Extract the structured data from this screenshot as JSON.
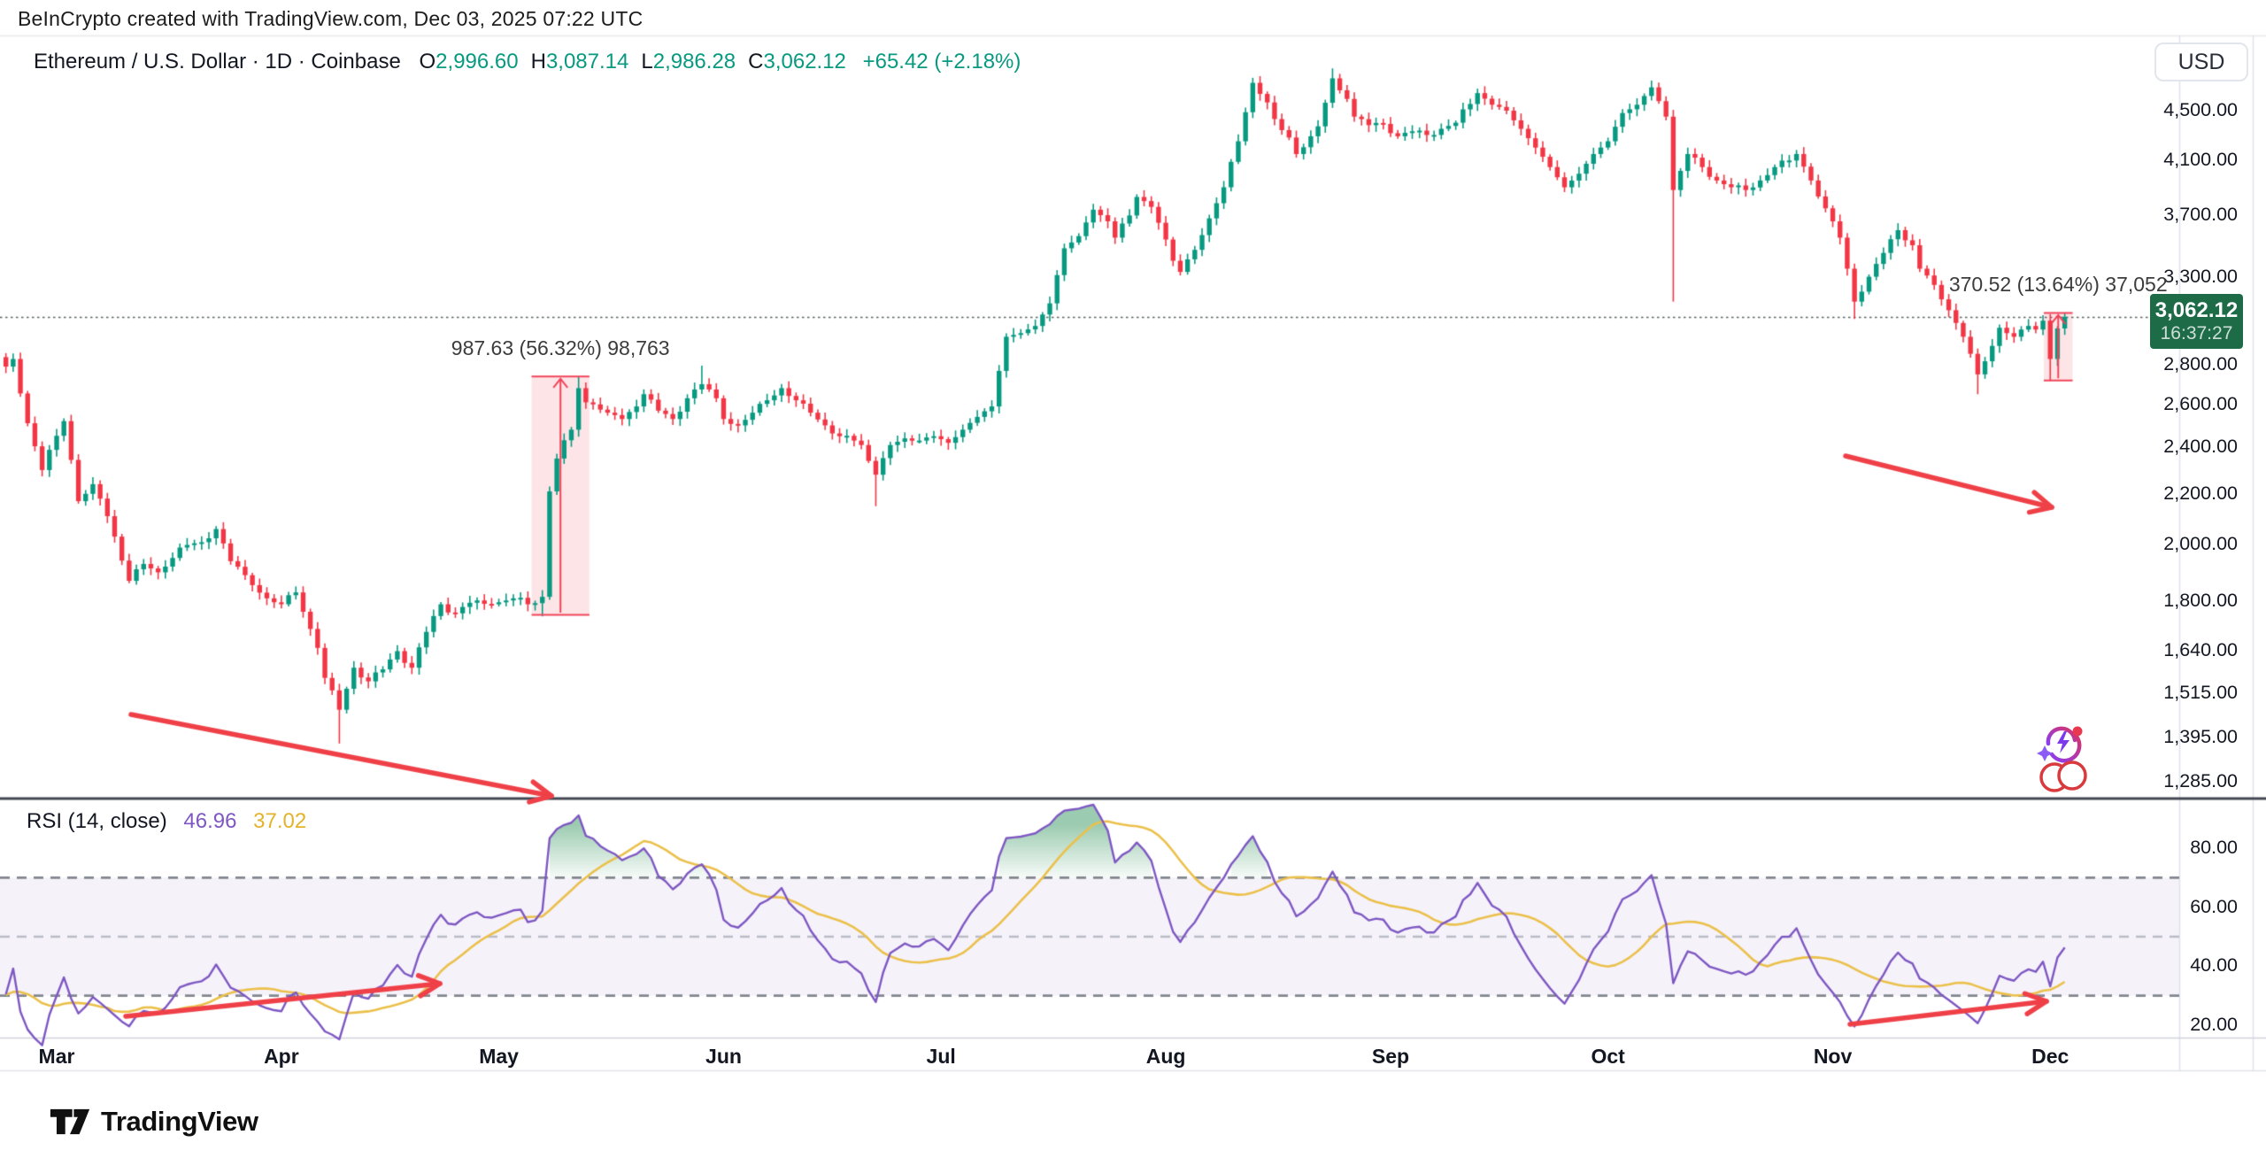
{
  "page": {
    "top_bar": "BeInCrypto created with TradingView.com, Dec 03, 2025 07:22 UTC"
  },
  "header": {
    "title_line": "Ethereum / U.S. Dollar · 1D · Coinbase",
    "ohlc": [
      {
        "label": "O",
        "value": "2,996.60"
      },
      {
        "label": "H",
        "value": "3,087.14"
      },
      {
        "label": "L",
        "value": "2,986.28"
      },
      {
        "label": "C",
        "value": "3,062.12"
      }
    ],
    "change": "+65.42 (+2.18%)"
  },
  "price_scale": {
    "currency_button": "USD",
    "labels": [
      "4,500.00",
      "4,100.00",
      "3,700.00",
      "3,300.00",
      "2,800.00",
      "2,600.00",
      "2,400.00",
      "2,200.00",
      "2,000.00",
      "1,800.00",
      "1,640.00",
      "1,515.00",
      "1,395.00",
      "1,285.00"
    ],
    "last_price_badge": {
      "price": "3,062.12",
      "countdown": "16:37:27"
    }
  },
  "time_scale": {
    "months": [
      "Mar",
      "Apr",
      "May",
      "Jun",
      "Jul",
      "Aug",
      "Sep",
      "Oct",
      "Nov",
      "Dec"
    ]
  },
  "annotations": {
    "may_measure_label": "987.63 (56.32%) 98,763",
    "dec_measure_label": "370.52 (13.64%) 37,052"
  },
  "rsi": {
    "legend_title": "RSI (14, close)",
    "rsi_value": "46.96",
    "ma_value": "37.02",
    "scale_labels": [
      "80.00",
      "60.00",
      "40.00",
      "20.00"
    ]
  },
  "footer": {
    "brand": "TradingView"
  },
  "colors": {
    "up": "#089981",
    "down": "#F23645",
    "rsi_line": "#7E57C2",
    "rsi_ma": "#EBC04A",
    "band_fill": "rgba(126,87,194,0.08)",
    "band_edge_dash": "#83868f",
    "band_mid_dash": "#b9bcc4",
    "overbought_top": "rgba(34,140,80,0.45)",
    "overbought_bottom": "rgba(34,140,80,0.04)",
    "arrow": "#EF4048",
    "measure_fill": "rgba(242,54,69,0.13)",
    "measure_line": "#F0445A",
    "last_price_line": "#565f5c",
    "badge_bg": "#1E6B48"
  },
  "chart_data": {
    "type": "candlestick",
    "title": "Ethereum / U.S. Dollar, 1D, Coinbase",
    "y_axis": {
      "scale": "log",
      "tick_values": [
        4500,
        4100,
        3700,
        3300,
        2800,
        2600,
        2400,
        2200,
        2000,
        1800,
        1640,
        1515,
        1395,
        1285
      ]
    },
    "x_axis": {
      "months": [
        "Mar",
        "Apr",
        "May",
        "Jun",
        "Jul",
        "Aug",
        "Sep",
        "Oct",
        "Nov",
        "Dec"
      ],
      "month_start_day_index": [
        7,
        38,
        68,
        99,
        129,
        160,
        191,
        221,
        252,
        282
      ],
      "days_total": 285
    },
    "price_anchors": [
      [
        0,
        2790
      ],
      [
        1,
        2830
      ],
      [
        3,
        2510
      ],
      [
        5,
        2300
      ],
      [
        8,
        2520
      ],
      [
        10,
        2170
      ],
      [
        12,
        2240
      ],
      [
        14,
        2110
      ],
      [
        17,
        1870
      ],
      [
        19,
        1930
      ],
      [
        21,
        1900
      ],
      [
        24,
        1990
      ],
      [
        27,
        2010
      ],
      [
        29,
        2060
      ],
      [
        31,
        1940
      ],
      [
        33,
        1890
      ],
      [
        36,
        1810
      ],
      [
        38,
        1790
      ],
      [
        40,
        1830
      ],
      [
        43,
        1650
      ],
      [
        44,
        1560
      ],
      [
        46,
        1470
      ],
      [
        48,
        1590
      ],
      [
        50,
        1550
      ],
      [
        52,
        1585
      ],
      [
        54,
        1640
      ],
      [
        56,
        1590
      ],
      [
        58,
        1700
      ],
      [
        60,
        1790
      ],
      [
        62,
        1760
      ],
      [
        64,
        1795
      ],
      [
        67,
        1790
      ],
      [
        70,
        1810
      ],
      [
        72,
        1790
      ],
      [
        74,
        1815
      ],
      [
        75,
        2210
      ],
      [
        76,
        2350
      ],
      [
        78,
        2480
      ],
      [
        79,
        2680
      ],
      [
        80,
        2610
      ],
      [
        81,
        2600
      ],
      [
        83,
        2560
      ],
      [
        85,
        2530
      ],
      [
        87,
        2590
      ],
      [
        88,
        2650
      ],
      [
        90,
        2570
      ],
      [
        92,
        2530
      ],
      [
        94,
        2630
      ],
      [
        96,
        2700
      ],
      [
        98,
        2630
      ],
      [
        99,
        2530
      ],
      [
        101,
        2500
      ],
      [
        103,
        2560
      ],
      [
        105,
        2620
      ],
      [
        107,
        2680
      ],
      [
        109,
        2620
      ],
      [
        111,
        2560
      ],
      [
        113,
        2500
      ],
      [
        115,
        2450
      ],
      [
        117,
        2430
      ],
      [
        118,
        2410
      ],
      [
        120,
        2280
      ],
      [
        122,
        2410
      ],
      [
        124,
        2440
      ],
      [
        126,
        2430
      ],
      [
        128,
        2450
      ],
      [
        130,
        2420
      ],
      [
        132,
        2480
      ],
      [
        134,
        2540
      ],
      [
        136,
        2590
      ],
      [
        138,
        2950
      ],
      [
        140,
        2970
      ],
      [
        142,
        3010
      ],
      [
        144,
        3140
      ],
      [
        146,
        3480
      ],
      [
        148,
        3560
      ],
      [
        150,
        3740
      ],
      [
        152,
        3660
      ],
      [
        153,
        3550
      ],
      [
        155,
        3700
      ],
      [
        156,
        3830
      ],
      [
        158,
        3760
      ],
      [
        159,
        3650
      ],
      [
        161,
        3400
      ],
      [
        162,
        3330
      ],
      [
        164,
        3470
      ],
      [
        166,
        3680
      ],
      [
        168,
        3900
      ],
      [
        170,
        4250
      ],
      [
        172,
        4740
      ],
      [
        174,
        4570
      ],
      [
        175,
        4430
      ],
      [
        177,
        4280
      ],
      [
        178,
        4150
      ],
      [
        180,
        4290
      ],
      [
        181,
        4370
      ],
      [
        183,
        4780
      ],
      [
        185,
        4600
      ],
      [
        186,
        4450
      ],
      [
        188,
        4380
      ],
      [
        190,
        4390
      ],
      [
        192,
        4290
      ],
      [
        194,
        4330
      ],
      [
        196,
        4300
      ],
      [
        198,
        4350
      ],
      [
        200,
        4400
      ],
      [
        203,
        4650
      ],
      [
        205,
        4550
      ],
      [
        207,
        4500
      ],
      [
        209,
        4350
      ],
      [
        211,
        4200
      ],
      [
        213,
        4050
      ],
      [
        215,
        3900
      ],
      [
        217,
        4000
      ],
      [
        219,
        4150
      ],
      [
        221,
        4250
      ],
      [
        223,
        4480
      ],
      [
        225,
        4550
      ],
      [
        227,
        4700
      ],
      [
        229,
        4450
      ],
      [
        230,
        3880
      ],
      [
        232,
        4150
      ],
      [
        234,
        4050
      ],
      [
        236,
        3950
      ],
      [
        238,
        3900
      ],
      [
        240,
        3880
      ],
      [
        242,
        3950
      ],
      [
        244,
        4050
      ],
      [
        246,
        4100
      ],
      [
        247,
        4150
      ],
      [
        249,
        3950
      ],
      [
        251,
        3750
      ],
      [
        253,
        3550
      ],
      [
        254,
        3350
      ],
      [
        255,
        3150
      ],
      [
        257,
        3300
      ],
      [
        259,
        3450
      ],
      [
        261,
        3600
      ],
      [
        263,
        3500
      ],
      [
        264,
        3350
      ],
      [
        266,
        3250
      ],
      [
        268,
        3100
      ],
      [
        270,
        2950
      ],
      [
        272,
        2750
      ],
      [
        274,
        2900
      ],
      [
        275,
        3000
      ],
      [
        276,
        2970
      ],
      [
        277,
        2950
      ],
      [
        278,
        2990
      ],
      [
        279,
        3010
      ],
      [
        280,
        2990
      ],
      [
        281,
        3040
      ],
      [
        282,
        2830
      ],
      [
        283,
        2996
      ],
      [
        284,
        3062
      ]
    ],
    "wick_overrides": {
      "1": {
        "high": 2860
      },
      "46": {
        "low": 1380
      },
      "74": {
        "low": 1750
      },
      "79": {
        "high": 2741
      },
      "96": {
        "high": 2795
      },
      "120": {
        "low": 2150
      },
      "183": {
        "high": 4870
      },
      "227": {
        "high": 4760
      },
      "230": {
        "low": 3150
      },
      "255": {
        "low": 3050
      },
      "272": {
        "low": 2650
      },
      "282": {
        "low": 2716
      },
      "284": {
        "high": 3087
      }
    },
    "last_price": 3062.12,
    "measurements": [
      {
        "from_day": 73,
        "to_day": 80,
        "low": 1753.6,
        "high": 2741.2,
        "label": "987.63 (56.32%) 98,763"
      },
      {
        "from_day": 281.6,
        "to_day": 284.6,
        "low": 2716.3,
        "high": 3086.8,
        "label": "370.52 (13.64%) 37,052"
      }
    ],
    "trend_arrows": [
      {
        "pane": "price",
        "from": [
          148,
          807
        ],
        "to": [
          623,
          899
        ]
      },
      {
        "pane": "price",
        "from": [
          2085,
          515
        ],
        "to": [
          2318,
          573
        ]
      },
      {
        "pane": "rsi",
        "from": [
          142,
          1148
        ],
        "to": [
          497,
          1111
        ]
      },
      {
        "pane": "rsi",
        "from": [
          2090,
          1157
        ],
        "to": [
          2312,
          1131
        ]
      }
    ],
    "rsi_pane": {
      "type": "line",
      "series": [
        "RSI (14)",
        "RSI 14-SMA"
      ],
      "range": [
        20,
        80
      ],
      "band_levels": [
        30,
        50,
        70
      ],
      "last_values": [
        46.96,
        37.02
      ]
    }
  }
}
